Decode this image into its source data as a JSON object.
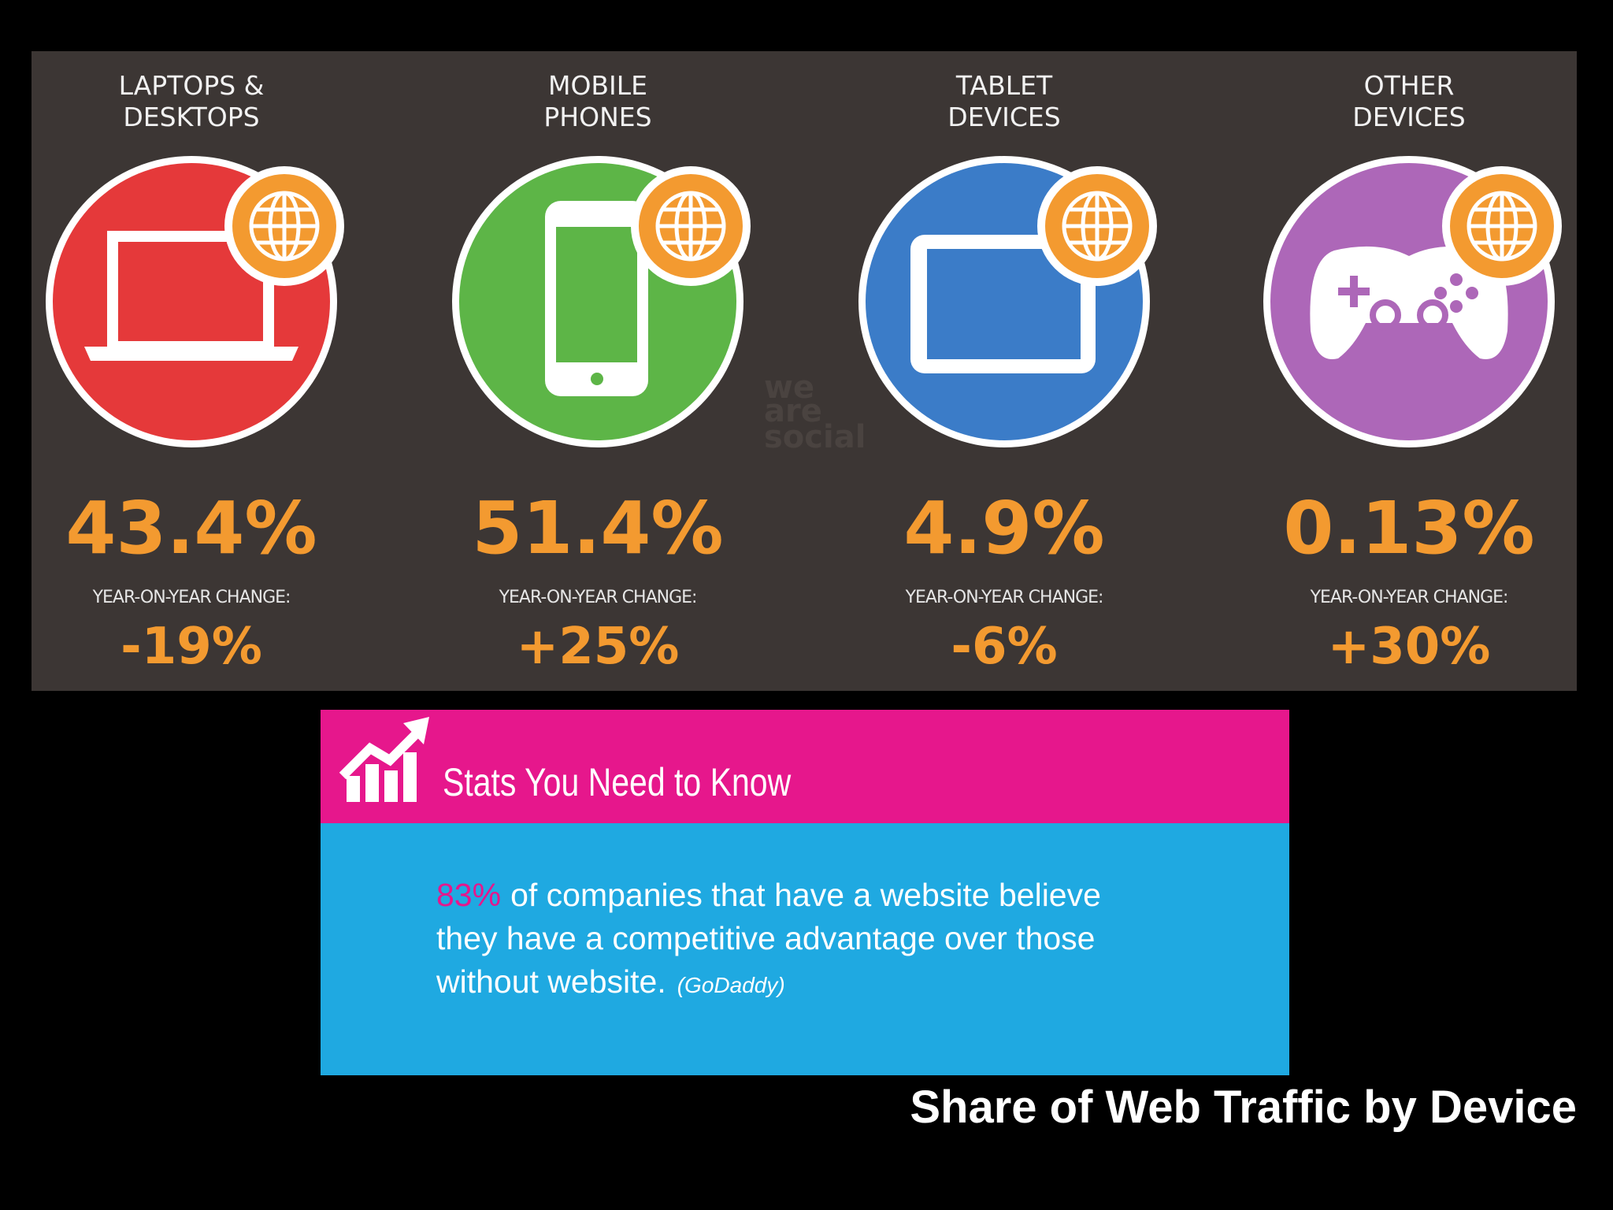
{
  "devices": [
    {
      "label": [
        "LAPTOPS &",
        "DESKTOPS"
      ],
      "share": "43.4%",
      "change_label": "YEAR-ON-YEAR CHANGE:",
      "change": "-19%"
    },
    {
      "label": [
        "MOBILE",
        "PHONES"
      ],
      "share": "51.4%",
      "change_label": "YEAR-ON-YEAR CHANGE:",
      "change": "+25%"
    },
    {
      "label": [
        "TABLET",
        "DEVICES"
      ],
      "share": "4.9%",
      "change_label": "YEAR-ON-YEAR CHANGE:",
      "change": "-6%"
    },
    {
      "label": [
        "OTHER",
        "DEVICES"
      ],
      "share": "0.13%",
      "change_label": "YEAR-ON-YEAR CHANGE:",
      "change": "+30%"
    }
  ],
  "watermark": [
    "we",
    "are",
    "social"
  ],
  "stat_box": {
    "title": "Stats You Need to Know",
    "highlight": "83%",
    "lines": [
      "of companies that have a website believe",
      "they have a competitive advantage over those",
      "without website."
    ],
    "source": "(GoDaddy)"
  },
  "footer": {
    "title": "Share of Web Traffic by Device"
  }
}
